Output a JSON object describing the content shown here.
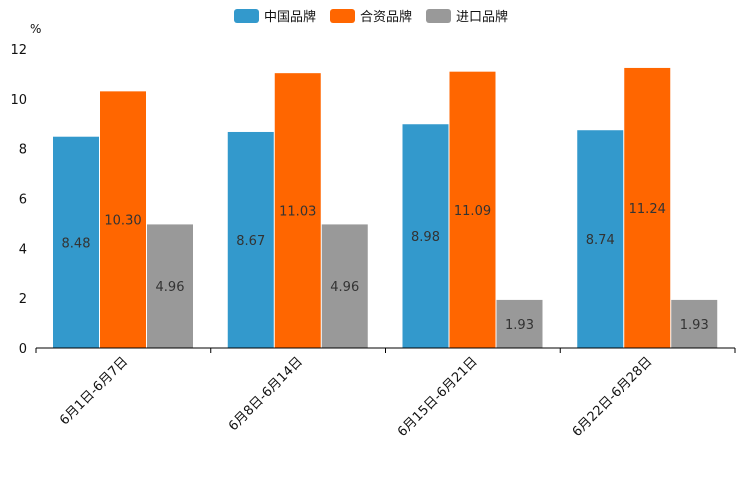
{
  "chart_data": {
    "type": "bar",
    "unit": "%",
    "ylim": [
      0,
      12
    ],
    "yticks": [
      0,
      2,
      4,
      6,
      8,
      10,
      12
    ],
    "grid": false,
    "legend_position": "top-center",
    "categories": [
      "6月1日-6月7日",
      "6月8日-6月14日",
      "6月15日-6月21日",
      "6月22日-6月28日"
    ],
    "series": [
      {
        "name": "中国品牌",
        "color": "#3399CC",
        "values": [
          8.48,
          8.67,
          8.98,
          8.74
        ],
        "labels": [
          "8.48",
          "8.67",
          "8.98",
          "8.74"
        ]
      },
      {
        "name": "合资品牌",
        "color": "#FF6600",
        "values": [
          10.3,
          11.03,
          11.09,
          11.24
        ],
        "labels": [
          "10.30",
          "11.03",
          "11.09",
          "11.24"
        ]
      },
      {
        "name": "进口品牌",
        "color": "#999999",
        "values": [
          4.96,
          4.96,
          1.93,
          1.93
        ],
        "labels": [
          "4.96",
          "4.96",
          "1.93",
          "1.93"
        ]
      }
    ]
  }
}
